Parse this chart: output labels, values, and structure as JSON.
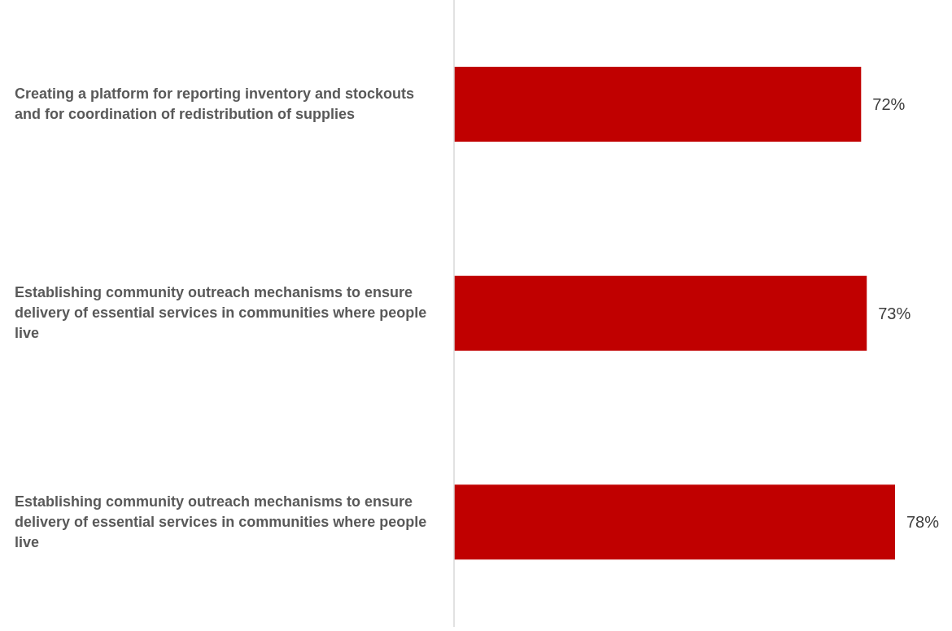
{
  "chart_data": {
    "type": "bar",
    "orientation": "horizontal",
    "categories": [
      "Creating a platform for reporting inventory and stockouts and for coordination of redistribution of supplies",
      "Establishing community outreach mechanisms to ensure delivery of essential services in communities where people live",
      "Establishing community outreach mechanisms to ensure delivery of essential services in communities where people live"
    ],
    "values": [
      72,
      73,
      78
    ],
    "value_labels": [
      "72%",
      "73%",
      "78%"
    ],
    "color": "#c00000",
    "tick_labels": "y"
  }
}
